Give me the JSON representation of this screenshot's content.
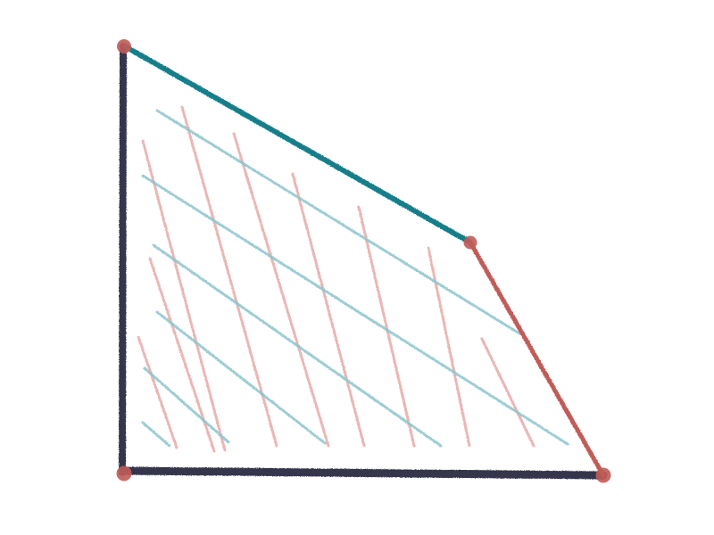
{
  "diagram": {
    "shape": "trapezoid",
    "vertices": [
      "top-left",
      "top-right",
      "bottom-right",
      "bottom-left"
    ],
    "edges": {
      "top": "teal",
      "right": "red",
      "bottom": "dark-navy",
      "left": "dark-navy"
    },
    "hatching": {
      "families": [
        "light-teal",
        "light-red"
      ]
    }
  },
  "colors": {
    "teal": "#127e8a",
    "red": "#c05c58",
    "navy": "#34344b",
    "hatch_teal": "#8cc3cc",
    "hatch_red": "#e6aaa6",
    "vertex": "#c05c58",
    "background": "#ffffff"
  }
}
